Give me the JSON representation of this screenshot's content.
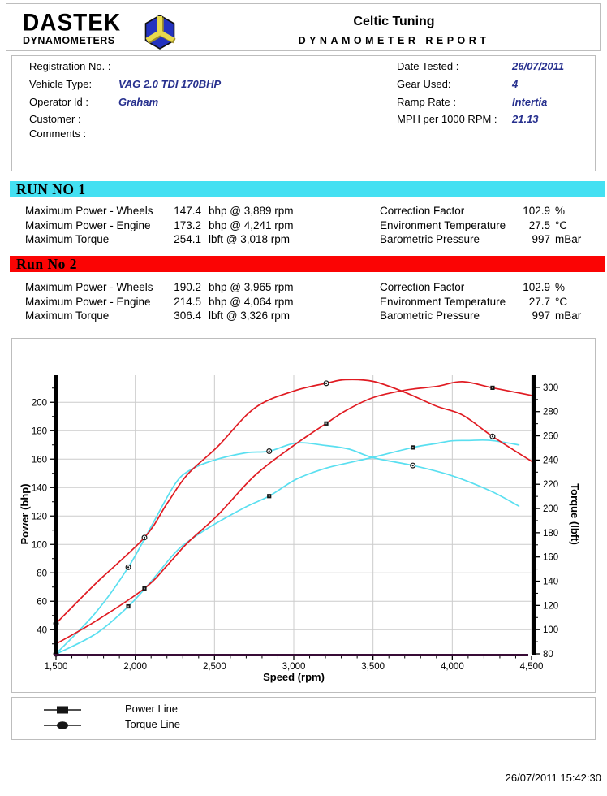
{
  "header": {
    "logo_line1": "DASTEK",
    "logo_line2": "DYNAMOMETERS",
    "title": "Celtic Tuning",
    "subtitle": "DYNAMOMETER REPORT"
  },
  "info": {
    "left": [
      {
        "label": "Registration No. :",
        "value": ""
      },
      {
        "label": "Vehicle Type:",
        "value": "VAG 2.0 TDI 170BHP"
      },
      {
        "label": "Operator Id :",
        "value": "Graham"
      },
      {
        "label": "Customer :",
        "value": ""
      },
      {
        "label": "Comments :",
        "value": ""
      }
    ],
    "right": [
      {
        "label": "Date Tested :",
        "value": "26/07/2011"
      },
      {
        "label": "Gear Used:",
        "value": "4"
      },
      {
        "label": "Ramp Rate :",
        "value": "Intertia"
      },
      {
        "label": "MPH per 1000 RPM :",
        "value": "21.13"
      }
    ]
  },
  "runs": [
    {
      "title": "RUN NO 1",
      "banner_color": "#44E0F2",
      "stats_left": [
        {
          "label": "Maximum Power - Wheels",
          "value": "147.4",
          "unit": "bhp @ 3,889 rpm"
        },
        {
          "label": "Maximum Power - Engine",
          "value": "173.2",
          "unit": "bhp @ 4,241 rpm"
        },
        {
          "label": "Maximum Torque",
          "value": "254.1",
          "unit": "lbft @ 3,018 rpm"
        }
      ],
      "stats_right": [
        {
          "label": "Correction Factor",
          "value": "102.9",
          "unit": "%"
        },
        {
          "label": "Environment Temperature",
          "value": "27.5",
          "unit": "°C"
        },
        {
          "label": "Barometric Pressure",
          "value": "997",
          "unit": "mBar"
        }
      ]
    },
    {
      "title": "Run No 2",
      "banner_color": "#FB0404",
      "stats_left": [
        {
          "label": "Maximum Power - Wheels",
          "value": "190.2",
          "unit": "bhp @ 3,965 rpm"
        },
        {
          "label": "Maximum Power - Engine",
          "value": "214.5",
          "unit": "bhp @ 4,064 rpm"
        },
        {
          "label": "Maximum Torque",
          "value": "306.4",
          "unit": "lbft @ 3,326 rpm"
        }
      ],
      "stats_right": [
        {
          "label": "Correction Factor",
          "value": "102.9",
          "unit": "%"
        },
        {
          "label": "Environment Temperature",
          "value": "27.7",
          "unit": "°C"
        },
        {
          "label": "Barometric Pressure",
          "value": "997",
          "unit": "mBar"
        }
      ]
    }
  ],
  "chart_data": {
    "type": "line",
    "xlabel": "Speed (rpm)",
    "ylabel_left": "Power (bhp)",
    "ylabel_right": "Torque (lbft)",
    "xlim": [
      1500,
      4500
    ],
    "x_ticks": [
      1500,
      2000,
      2500,
      3000,
      3500,
      4000,
      4500
    ],
    "x_tick_labels": [
      "1,500",
      "2,000",
      "2,500",
      "3,000",
      "3,500",
      "4,000",
      "4,500"
    ],
    "x_minor_step": 100,
    "power_lim": [
      23,
      219
    ],
    "power_ticks": [
      40,
      60,
      80,
      100,
      120,
      140,
      160,
      180,
      200
    ],
    "power_minor_step": 10,
    "torque_lim": [
      80,
      310
    ],
    "torque_ticks": [
      80,
      100,
      120,
      140,
      160,
      180,
      200,
      220,
      240,
      260,
      280,
      300
    ],
    "torque_minor_step": 10,
    "grid": true,
    "legend_position": "bottom-box",
    "axis_colors": {
      "axis_line": "#000000",
      "baseline": "#380C36",
      "grid": "#cccccc"
    },
    "series": [
      {
        "name": "Run 1 Power",
        "run": 1,
        "axis": "power",
        "color": "#5ADFF0",
        "marker": "square",
        "points": [
          [
            1500,
            22.8
          ],
          [
            1750,
            37
          ],
          [
            1956,
            56.4
          ],
          [
            2100,
            74
          ],
          [
            2250,
            94
          ],
          [
            2350,
            103.4
          ],
          [
            2500,
            114.2
          ],
          [
            2700,
            126.5
          ],
          [
            2845,
            134.0
          ],
          [
            3018,
            146.0
          ],
          [
            3200,
            153.5
          ],
          [
            3350,
            157.5
          ],
          [
            3500,
            161.3
          ],
          [
            3751,
            168.2
          ],
          [
            3900,
            171.0
          ],
          [
            4000,
            172.9
          ],
          [
            4100,
            173.1
          ],
          [
            4241,
            173.2
          ],
          [
            4420,
            170.0
          ]
        ],
        "markers": [
          [
            1500,
            22.8
          ],
          [
            1956,
            56.4
          ],
          [
            2845,
            134.0
          ],
          [
            3751,
            168.2
          ]
        ]
      },
      {
        "name": "Run 1 Torque",
        "run": 1,
        "axis": "torque",
        "color": "#5ADFF0",
        "marker": "circle",
        "points": [
          [
            1500,
            80
          ],
          [
            1750,
            114
          ],
          [
            1956,
            151.5
          ],
          [
            2100,
            185
          ],
          [
            2250,
            220
          ],
          [
            2350,
            232
          ],
          [
            2500,
            240
          ],
          [
            2700,
            246
          ],
          [
            2845,
            247.3
          ],
          [
            3018,
            254.1
          ],
          [
            3200,
            252
          ],
          [
            3350,
            249
          ],
          [
            3500,
            242
          ],
          [
            3751,
            235.5
          ],
          [
            4000,
            227
          ],
          [
            4241,
            214.5
          ],
          [
            4420,
            202
          ]
        ],
        "markers": [
          [
            1500,
            80
          ],
          [
            1956,
            151.5
          ],
          [
            2845,
            247.3
          ],
          [
            3751,
            235.5
          ]
        ]
      },
      {
        "name": "Run 2 Power",
        "run": 2,
        "axis": "power",
        "color": "#E01B22",
        "marker": "square",
        "points": [
          [
            1500,
            30
          ],
          [
            1750,
            46
          ],
          [
            2058,
            69
          ],
          [
            2200,
            85
          ],
          [
            2329,
            101
          ],
          [
            2519,
            120.4
          ],
          [
            2754,
            148.4
          ],
          [
            3000,
            169.6
          ],
          [
            3205,
            185.1
          ],
          [
            3326,
            194.0
          ],
          [
            3500,
            203.3
          ],
          [
            3700,
            208.5
          ],
          [
            3900,
            211.2
          ],
          [
            4064,
            214.5
          ],
          [
            4254,
            210.2
          ],
          [
            4500,
            204.8
          ]
        ],
        "markers": [
          [
            1500,
            30
          ],
          [
            2058,
            69
          ],
          [
            3205,
            185.1
          ],
          [
            4254,
            210.2
          ]
        ]
      },
      {
        "name": "Run 2 Torque",
        "run": 2,
        "axis": "torque",
        "color": "#E01B22",
        "marker": "circle",
        "points": [
          [
            1500,
            105
          ],
          [
            1750,
            138
          ],
          [
            2058,
            176
          ],
          [
            2200,
            204
          ],
          [
            2329,
            228
          ],
          [
            2519,
            251
          ],
          [
            2754,
            283
          ],
          [
            3000,
            297
          ],
          [
            3205,
            303.4
          ],
          [
            3326,
            306.4
          ],
          [
            3500,
            305
          ],
          [
            3700,
            296
          ],
          [
            3900,
            284.5
          ],
          [
            4064,
            277.2
          ],
          [
            4254,
            259.5
          ],
          [
            4500,
            239
          ]
        ],
        "markers": [
          [
            1500,
            105
          ],
          [
            2058,
            176
          ],
          [
            3205,
            303.4
          ],
          [
            4254,
            259.5
          ]
        ]
      }
    ]
  },
  "legend": [
    {
      "marker": "square",
      "label": "Power Line"
    },
    {
      "marker": "circle",
      "label": "Torque Line"
    }
  ],
  "footer": {
    "timestamp": "26/07/2011 15:42:30"
  }
}
